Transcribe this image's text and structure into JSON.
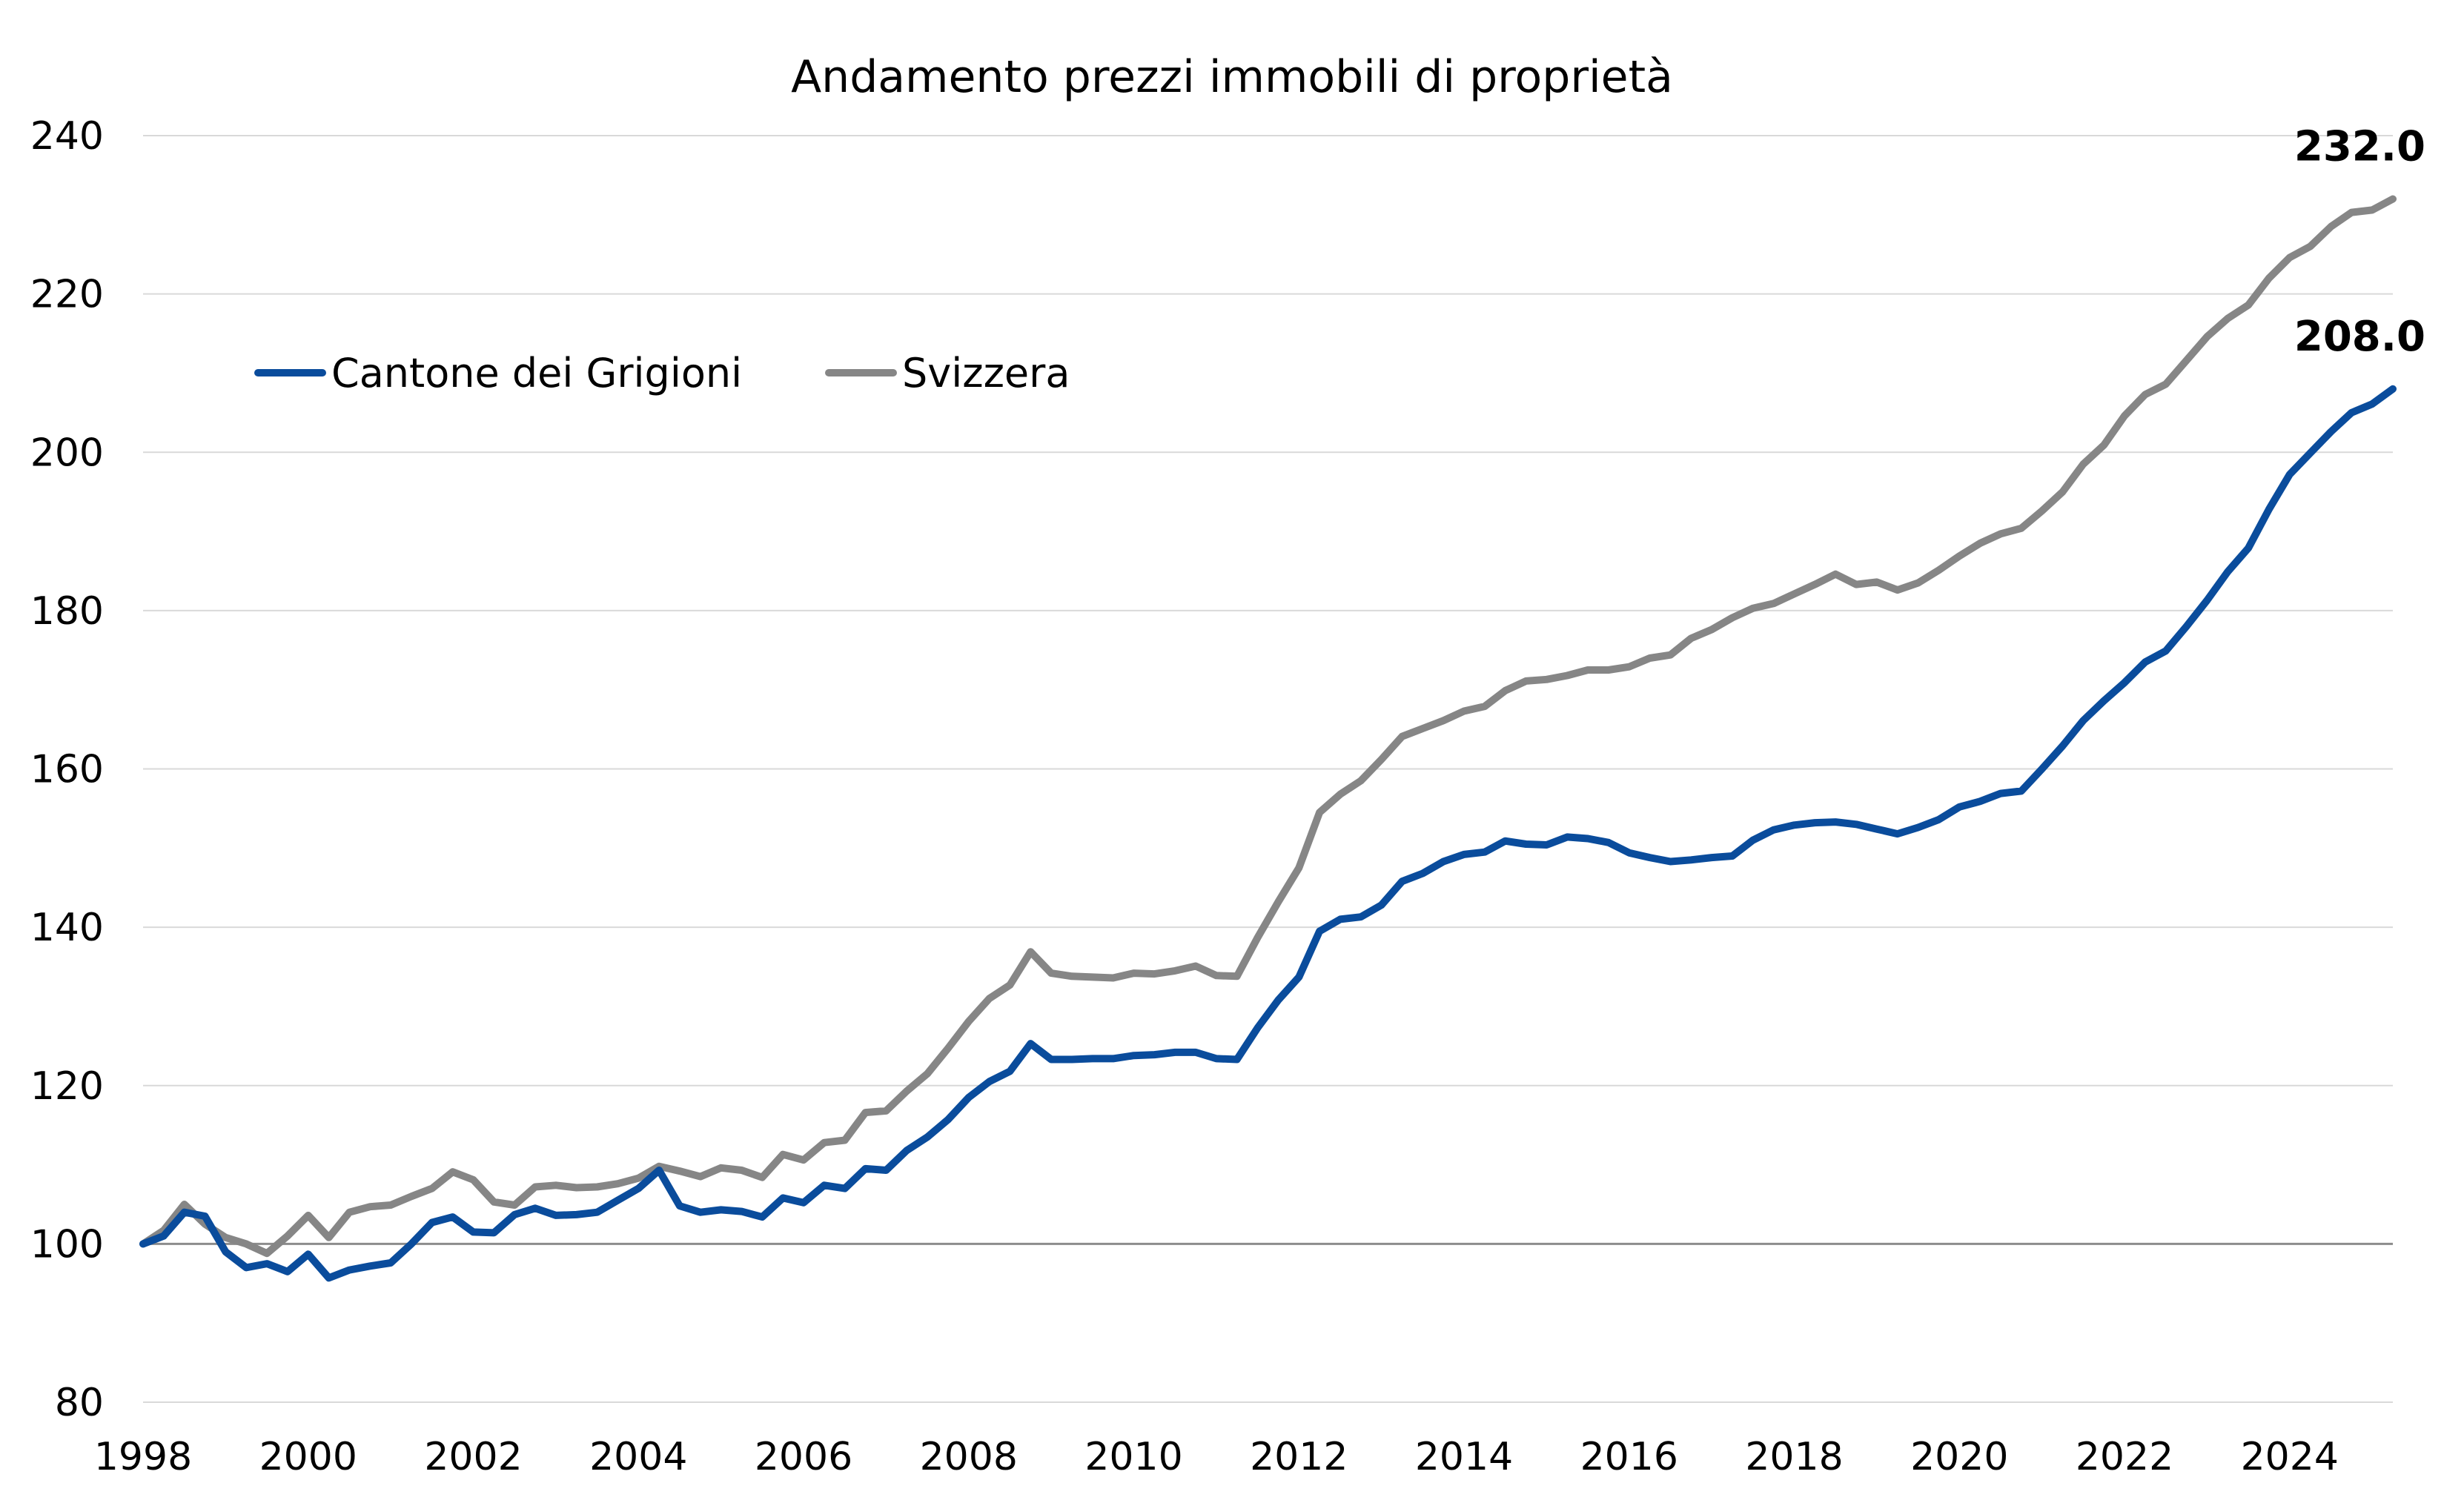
{
  "chart_data": {
    "type": "line",
    "title": "Andamento prezzi immobili di proprietà",
    "xlabel": "",
    "ylabel": "",
    "xlim": [
      1998,
      2025.25
    ],
    "ylim": [
      80,
      240
    ],
    "y_ticks": [
      "80",
      "100",
      "120",
      "140",
      "160",
      "180",
      "200",
      "220",
      "240"
    ],
    "x_ticks": [
      "1998",
      "2000",
      "2002",
      "2004",
      "2006",
      "2008",
      "2010",
      "2012",
      "2014",
      "2016",
      "2018",
      "2020",
      "2022",
      "2024"
    ],
    "baseline": 100,
    "grid": true,
    "legend_position": "top-left",
    "x": [
      1998.0,
      1998.25,
      1998.5,
      1998.75,
      1999.0,
      1999.25,
      1999.5,
      1999.75,
      2000.0,
      2000.25,
      2000.5,
      2000.75,
      2001.0,
      2001.25,
      2001.5,
      2001.75,
      2002.0,
      2002.25,
      2002.5,
      2002.75,
      2003.0,
      2003.25,
      2003.5,
      2003.75,
      2004.0,
      2004.25,
      2004.5,
      2004.75,
      2005.0,
      2005.25,
      2005.5,
      2005.75,
      2006.0,
      2006.25,
      2006.5,
      2006.75,
      2007.0,
      2007.25,
      2007.5,
      2007.75,
      2008.0,
      2008.25,
      2008.5,
      2008.75,
      2009.0,
      2009.25,
      2009.5,
      2009.75,
      2010.0,
      2010.25,
      2010.5,
      2010.75,
      2011.0,
      2011.25,
      2011.5,
      2011.75,
      2012.0,
      2012.25,
      2012.5,
      2012.75,
      2013.0,
      2013.25,
      2013.5,
      2013.75,
      2014.0,
      2014.25,
      2014.5,
      2014.75,
      2015.0,
      2015.25,
      2015.5,
      2015.75,
      2016.0,
      2016.25,
      2016.5,
      2016.75,
      2017.0,
      2017.25,
      2017.5,
      2017.75,
      2018.0,
      2018.25,
      2018.5,
      2018.75,
      2019.0,
      2019.25,
      2019.5,
      2019.75,
      2020.0,
      2020.25,
      2020.5,
      2020.75,
      2021.0,
      2021.25,
      2021.5,
      2021.75,
      2022.0,
      2022.25,
      2022.5,
      2022.75,
      2023.0,
      2023.25,
      2023.5,
      2023.75,
      2024.0,
      2024.25,
      2024.5,
      2024.75,
      2025.0,
      2025.25
    ],
    "series": [
      {
        "name": "Cantone dei Grigioni",
        "color": "#0a4c9c",
        "end_label": "208.0",
        "values": [
          100.0,
          101.0,
          104.0,
          103.5,
          99.0,
          97.0,
          97.5,
          96.5,
          98.7,
          95.7,
          96.7,
          97.2,
          97.6,
          100.0,
          102.7,
          103.4,
          101.5,
          101.4,
          103.7,
          104.5,
          103.6,
          103.7,
          104.0,
          105.5,
          107.0,
          109.3,
          104.8,
          104.0,
          104.3,
          104.1,
          103.4,
          105.8,
          105.2,
          107.4,
          107.0,
          109.5,
          109.3,
          111.8,
          113.5,
          115.7,
          118.5,
          120.5,
          121.8,
          125.3,
          123.3,
          123.3,
          123.4,
          123.4,
          123.8,
          123.9,
          124.2,
          124.2,
          123.4,
          123.3,
          127.3,
          130.8,
          133.7,
          139.5,
          141.0,
          141.3,
          142.8,
          145.8,
          146.8,
          148.3,
          149.2,
          149.5,
          150.9,
          150.5,
          150.4,
          151.4,
          151.2,
          150.7,
          149.4,
          148.8,
          148.3,
          148.5,
          148.8,
          149.0,
          151.0,
          152.3,
          152.9,
          153.2,
          153.3,
          153.0,
          152.4,
          151.8,
          152.6,
          153.6,
          155.2,
          155.9,
          156.9,
          157.2,
          160.0,
          162.9,
          166.1,
          168.6,
          170.9,
          173.5,
          174.9,
          178.0,
          181.3,
          184.9,
          187.9,
          192.8,
          197.2,
          199.9,
          202.6,
          205.0,
          206.1,
          208.0
        ]
      },
      {
        "name": "Svizzera",
        "color": "#868686",
        "end_label": "232.0",
        "values": [
          100.0,
          101.7,
          105.0,
          102.5,
          100.8,
          100.0,
          98.8,
          101.0,
          103.6,
          100.8,
          104.0,
          104.7,
          104.9,
          106.0,
          107.0,
          109.1,
          108.1,
          105.3,
          104.9,
          107.2,
          107.4,
          107.1,
          107.2,
          107.6,
          108.3,
          109.8,
          109.2,
          108.5,
          109.6,
          109.3,
          108.4,
          111.3,
          110.6,
          112.8,
          113.1,
          116.6,
          116.8,
          119.3,
          121.5,
          124.7,
          128.1,
          131.0,
          132.7,
          136.9,
          134.2,
          133.8,
          133.7,
          133.6,
          134.2,
          134.1,
          134.5,
          135.1,
          133.9,
          133.8,
          138.7,
          143.2,
          147.5,
          154.5,
          156.8,
          158.5,
          161.2,
          164.1,
          165.1,
          166.1,
          167.3,
          167.9,
          169.9,
          171.1,
          171.3,
          171.8,
          172.5,
          172.5,
          172.9,
          174.0,
          174.4,
          176.5,
          177.6,
          179.1,
          180.3,
          180.9,
          182.1,
          183.3,
          184.6,
          183.3,
          183.6,
          182.6,
          183.5,
          185.1,
          186.9,
          188.5,
          189.7,
          190.4,
          192.6,
          195.0,
          198.5,
          200.9,
          204.6,
          207.3,
          208.6,
          211.6,
          214.6,
          216.9,
          218.6,
          222.0,
          224.6,
          226.0,
          228.5,
          230.3,
          230.6,
          232.0
        ]
      }
    ]
  }
}
